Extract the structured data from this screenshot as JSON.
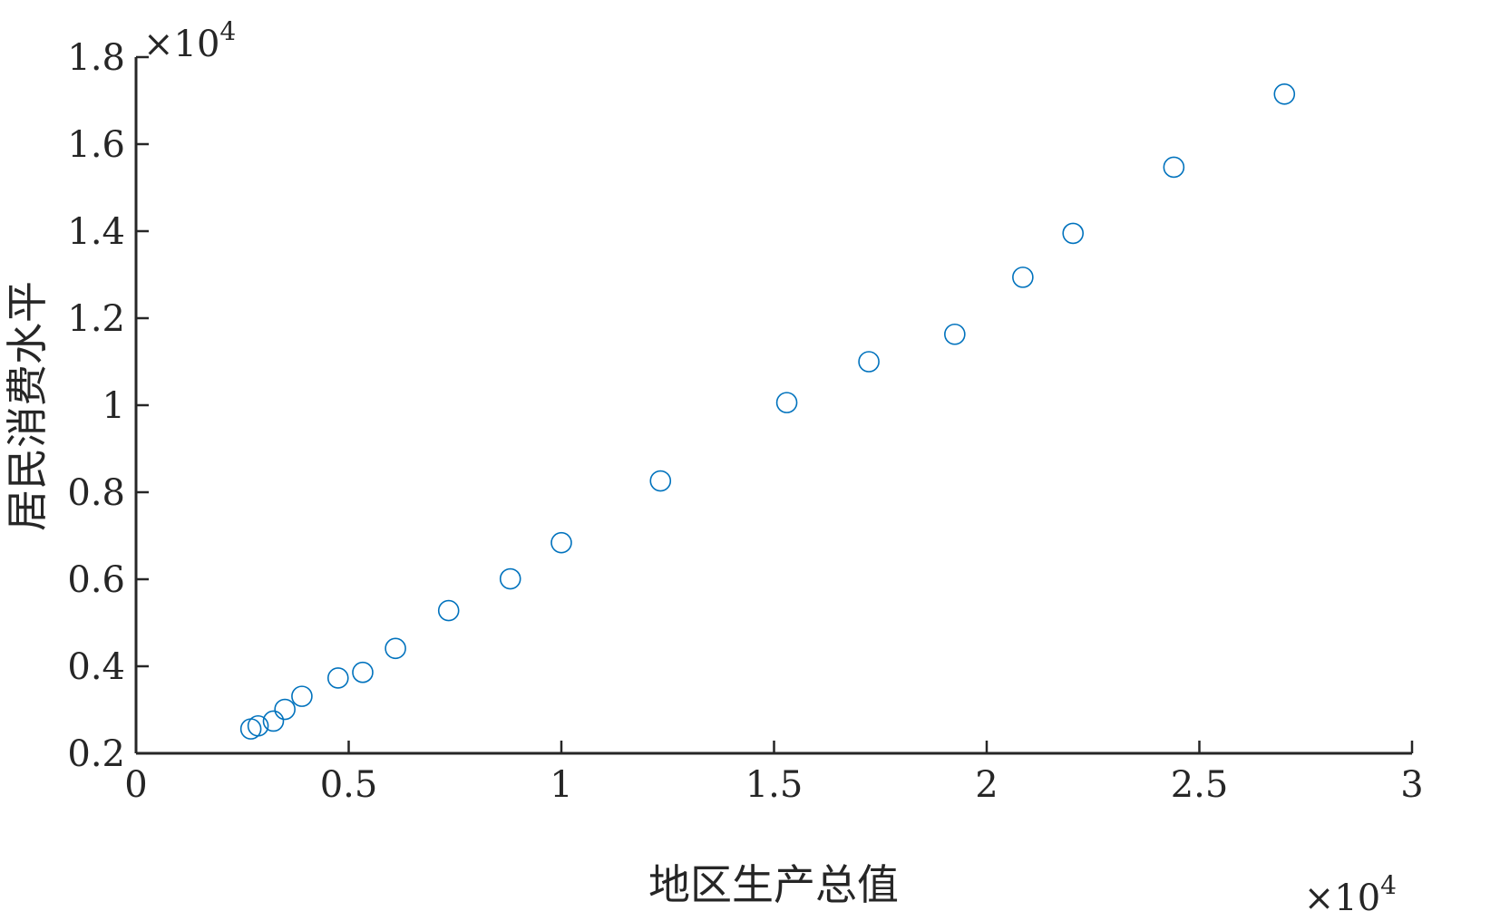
{
  "chart_data": {
    "type": "scatter",
    "xlabel": "地区生产总值",
    "ylabel": "居民消费水平",
    "xlim": [
      0,
      3
    ],
    "ylim": [
      0.2,
      1.8
    ],
    "x_ticks": [
      0,
      0.5,
      1,
      1.5,
      2,
      2.5,
      3
    ],
    "x_tick_labels": [
      "0",
      "0.5",
      "1",
      "1.5",
      "2",
      "2.5",
      "3"
    ],
    "y_ticks": [
      0.2,
      0.4,
      0.6,
      0.8,
      1.0,
      1.2,
      1.4,
      1.6,
      1.8
    ],
    "y_tick_labels": [
      "0.2",
      "0.4",
      "0.6",
      "0.8",
      "1",
      "1.2",
      "1.4",
      "1.6",
      "1.8"
    ],
    "x_exponent": {
      "base": "×10",
      "power": "4"
    },
    "y_exponent": {
      "base": "×10",
      "power": "4"
    },
    "grid": false,
    "marker": "open-circle",
    "marker_color": "#0072BD",
    "series": [
      {
        "points": [
          [
            0.27,
            0.256
          ],
          [
            0.287,
            0.263
          ],
          [
            0.323,
            0.274
          ],
          [
            0.35,
            0.301
          ],
          [
            0.39,
            0.331
          ],
          [
            0.475,
            0.373
          ],
          [
            0.533,
            0.386
          ],
          [
            0.61,
            0.441
          ],
          [
            0.735,
            0.528
          ],
          [
            0.88,
            0.601
          ],
          [
            1.0,
            0.684
          ],
          [
            1.233,
            0.826
          ],
          [
            1.53,
            1.006
          ],
          [
            1.723,
            1.1
          ],
          [
            1.925,
            1.163
          ],
          [
            2.085,
            1.294
          ],
          [
            2.203,
            1.395
          ],
          [
            2.44,
            1.547
          ],
          [
            2.7,
            1.715
          ]
        ]
      }
    ]
  }
}
